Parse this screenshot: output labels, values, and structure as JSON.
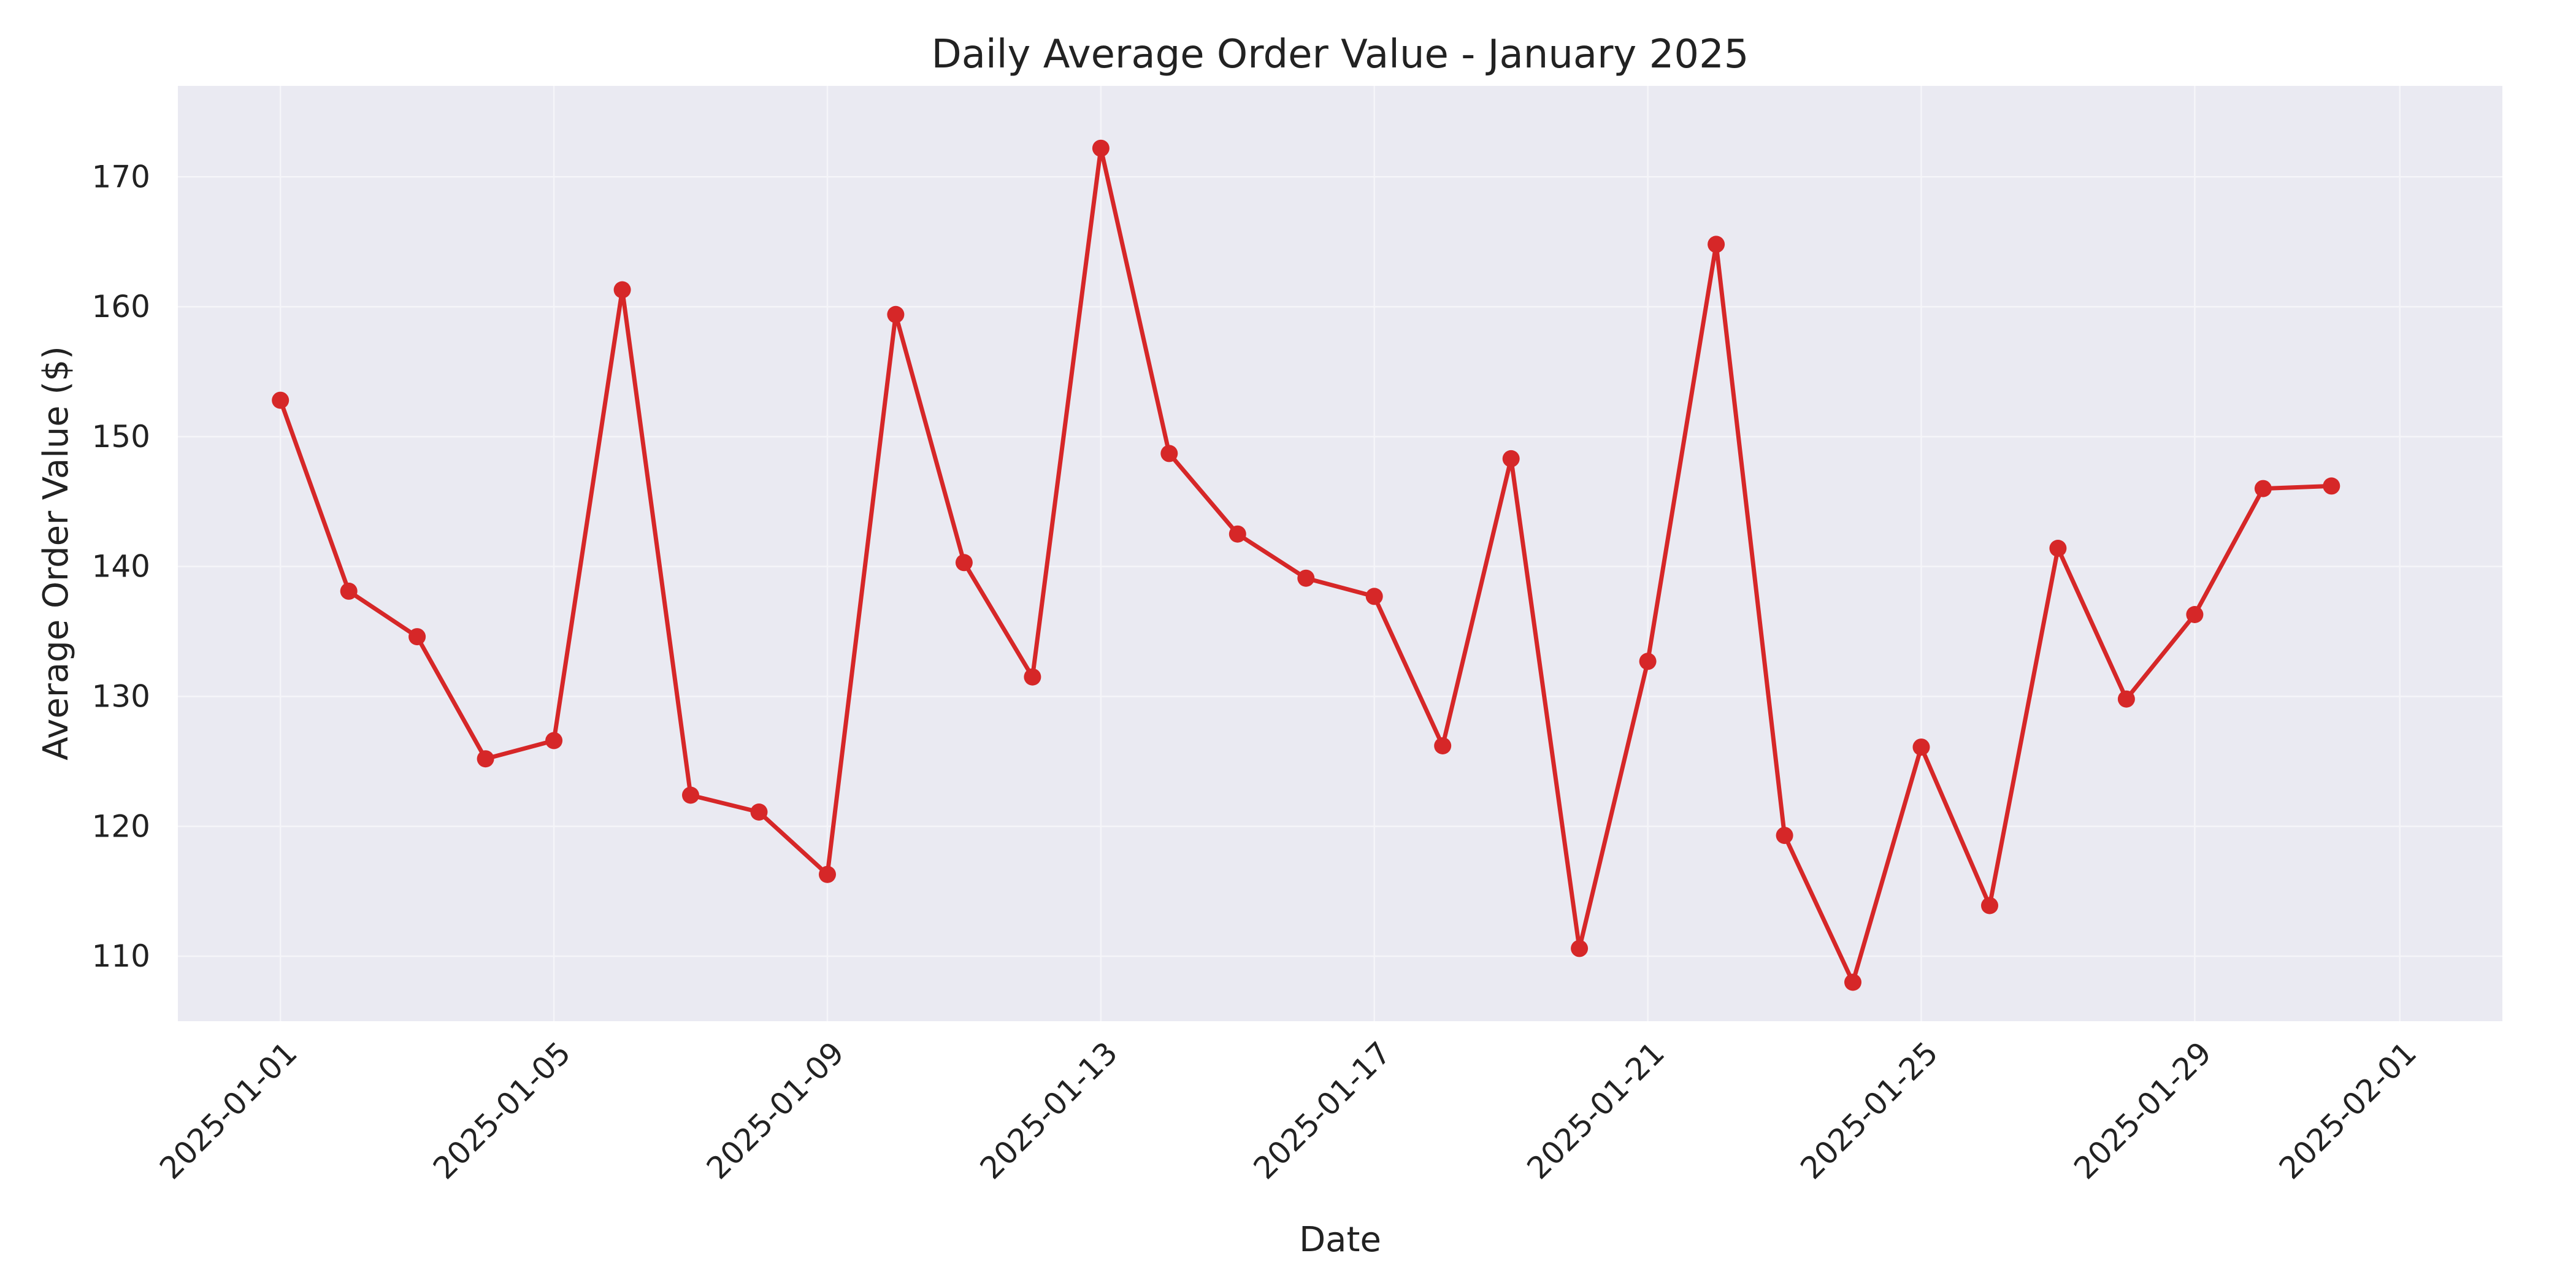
{
  "chart_data": {
    "type": "line",
    "title": "Daily Average Order Value - January 2025",
    "xlabel": "Date",
    "ylabel": "Average Order Value ($)",
    "x": [
      "2025-01-01",
      "2025-01-02",
      "2025-01-03",
      "2025-01-04",
      "2025-01-05",
      "2025-01-06",
      "2025-01-07",
      "2025-01-08",
      "2025-01-09",
      "2025-01-10",
      "2025-01-11",
      "2025-01-12",
      "2025-01-13",
      "2025-01-14",
      "2025-01-15",
      "2025-01-16",
      "2025-01-17",
      "2025-01-18",
      "2025-01-19",
      "2025-01-20",
      "2025-01-21",
      "2025-01-22",
      "2025-01-23",
      "2025-01-24",
      "2025-01-25",
      "2025-01-26",
      "2025-01-27",
      "2025-01-28",
      "2025-01-29",
      "2025-01-30",
      "2025-01-31"
    ],
    "series": [
      {
        "values": [
          152.8,
          138.1,
          134.6,
          125.2,
          126.6,
          161.3,
          122.4,
          121.1,
          116.3,
          159.4,
          140.3,
          131.5,
          172.2,
          148.7,
          142.5,
          139.1,
          137.7,
          126.2,
          148.3,
          110.6,
          132.7,
          164.8,
          119.3,
          108.0,
          126.1,
          113.9,
          141.4,
          129.8,
          136.3,
          146.0,
          146.2
        ],
        "color": "#d62728"
      }
    ],
    "xlim": [
      "2024-12-30T12:00",
      "2025-02-02T12:00"
    ],
    "ylim": [
      105,
      177
    ],
    "x_ticks": [
      "2025-01-01",
      "2025-01-05",
      "2025-01-09",
      "2025-01-13",
      "2025-01-17",
      "2025-01-21",
      "2025-01-25",
      "2025-01-29",
      "2025-02-01"
    ],
    "y_ticks": [
      110,
      120,
      130,
      140,
      150,
      160,
      170
    ],
    "grid": true,
    "plot_background": "#eaeaf2",
    "grid_color": "#f5f5f9"
  }
}
